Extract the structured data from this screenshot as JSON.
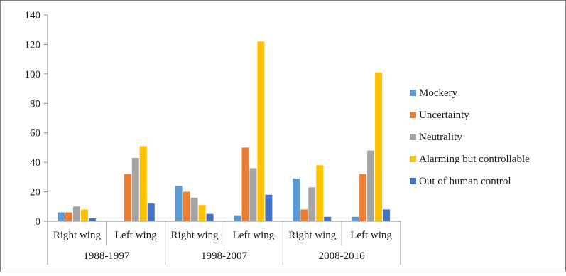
{
  "chart_data": {
    "type": "bar",
    "title": "",
    "xlabel": "",
    "ylabel": "",
    "ylim": [
      0,
      140
    ],
    "yticks": [
      0,
      20,
      40,
      60,
      80,
      100,
      120,
      140
    ],
    "grid": false,
    "legend_position": "right",
    "categories": [
      {
        "group": "1988-1997",
        "label": "Right wing"
      },
      {
        "group": "1988-1997",
        "label": "Left wing"
      },
      {
        "group": "1998-2007",
        "label": "Right wing"
      },
      {
        "group": "1998-2007",
        "label": "Left wing"
      },
      {
        "group": "2008-2016",
        "label": "Right wing"
      },
      {
        "group": "2008-2016",
        "label": "Left wing"
      }
    ],
    "groups": [
      "1988-1997",
      "1998-2007",
      "2008-2016"
    ],
    "series": [
      {
        "name": "Mockery",
        "color": "#5b9bd5",
        "values": [
          6,
          0,
          24,
          4,
          29,
          3
        ]
      },
      {
        "name": "Uncertainty",
        "color": "#ed7d31",
        "values": [
          6,
          32,
          20,
          50,
          8,
          32
        ]
      },
      {
        "name": "Neutrality",
        "color": "#a5a5a5",
        "values": [
          10,
          43,
          16,
          36,
          23,
          48
        ]
      },
      {
        "name": "Alarming but controllable",
        "color": "#ffc000",
        "values": [
          8,
          51,
          11,
          122,
          38,
          101
        ]
      },
      {
        "name": "Out of human control",
        "color": "#4472c4",
        "values": [
          2,
          12,
          5,
          18,
          3,
          8
        ]
      }
    ]
  }
}
